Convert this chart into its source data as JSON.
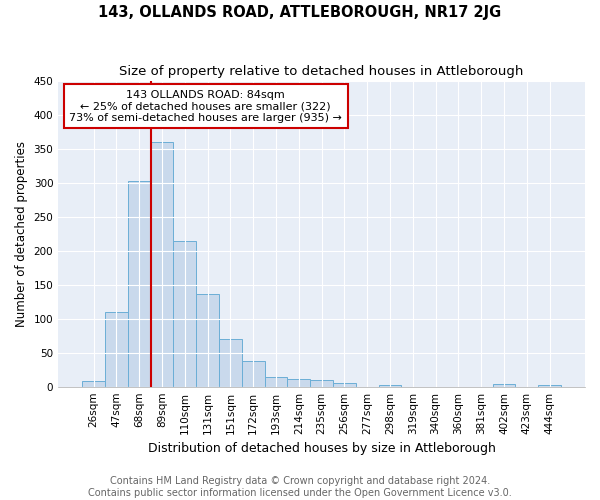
{
  "title": "143, OLLANDS ROAD, ATTLEBOROUGH, NR17 2JG",
  "subtitle": "Size of property relative to detached houses in Attleborough",
  "xlabel": "Distribution of detached houses by size in Attleborough",
  "ylabel": "Number of detached properties",
  "footer_line1": "Contains HM Land Registry data © Crown copyright and database right 2024.",
  "footer_line2": "Contains public sector information licensed under the Open Government Licence v3.0.",
  "bar_labels": [
    "26sqm",
    "47sqm",
    "68sqm",
    "89sqm",
    "110sqm",
    "131sqm",
    "151sqm",
    "172sqm",
    "193sqm",
    "214sqm",
    "235sqm",
    "256sqm",
    "277sqm",
    "298sqm",
    "319sqm",
    "340sqm",
    "360sqm",
    "381sqm",
    "402sqm",
    "423sqm",
    "444sqm"
  ],
  "bar_values": [
    9,
    110,
    303,
    359,
    214,
    136,
    70,
    38,
    14,
    12,
    10,
    6,
    0,
    3,
    0,
    0,
    0,
    0,
    4,
    0,
    3
  ],
  "bar_color": "#c9d9ec",
  "bar_edge_color": "#6baed6",
  "vline_index": 3,
  "annotation_title": "143 OLLANDS ROAD: 84sqm",
  "annotation_line2": "← 25% of detached houses are smaller (322)",
  "annotation_line3": "73% of semi-detached houses are larger (935) →",
  "annotation_box_facecolor": "#ffffff",
  "annotation_box_edgecolor": "#cc0000",
  "vline_color": "#cc0000",
  "background_color": "#ffffff",
  "plot_bg_color": "#e8eef7",
  "grid_color": "#ffffff",
  "yticks": [
    0,
    50,
    100,
    150,
    200,
    250,
    300,
    350,
    400,
    450
  ],
  "ylim": [
    0,
    450
  ],
  "title_fontsize": 10.5,
  "subtitle_fontsize": 9.5,
  "xlabel_fontsize": 9,
  "ylabel_fontsize": 8.5,
  "tick_fontsize": 7.5,
  "annotation_fontsize": 8,
  "footer_fontsize": 7
}
